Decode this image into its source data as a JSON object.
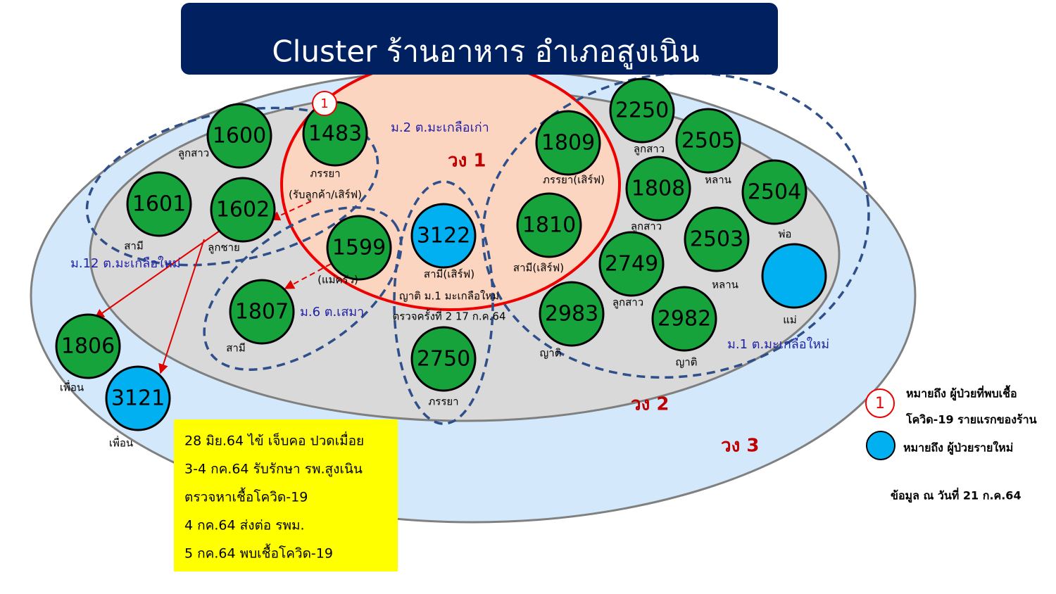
{
  "title": "Cluster ร้านอาหาร อำเภอสูงเนิน",
  "nodes": [
    {
      "id": "1600",
      "label": "ลูกสาว",
      "color": "#17a33b"
    },
    {
      "id": "1483",
      "label": "ภรรยา",
      "label2": "(รับลูกค้า/เสิร์ฟ)",
      "color": "#17a33b",
      "marker": "1"
    },
    {
      "id": "1601",
      "label": "สามี",
      "color": "#17a33b"
    },
    {
      "id": "1602",
      "label": "ลูกชาย",
      "color": "#17a33b"
    },
    {
      "id": "1599",
      "label": "(แม่ครัว)",
      "color": "#17a33b"
    },
    {
      "id": "3122",
      "label": "สามี(เสิร์ฟ)",
      "color": "#00b0f0"
    },
    {
      "id": "1809",
      "label": "ภรรยา(เสิร์ฟ)",
      "color": "#17a33b"
    },
    {
      "id": "1810",
      "label": "สามี(เสิร์ฟ)",
      "color": "#17a33b"
    },
    {
      "id": "2250",
      "label": "ลูกสาว",
      "color": "#17a33b"
    },
    {
      "id": "2505",
      "label": "หลาน",
      "color": "#17a33b"
    },
    {
      "id": "1808",
      "label": "ลูกสาว",
      "color": "#17a33b"
    },
    {
      "id": "2504",
      "label": "พ่อ",
      "color": "#17a33b"
    },
    {
      "id": "2503",
      "label": "หลาน",
      "color": "#17a33b"
    },
    {
      "id": "2749",
      "label": "ลูกสาว",
      "color": "#17a33b"
    },
    {
      "id": "2983",
      "label": "ญาติ",
      "color": "#17a33b"
    },
    {
      "id": "2982",
      "label": "ญาติ",
      "color": "#17a33b"
    },
    {
      "label": "แม่",
      "color": "#00b0f0"
    },
    {
      "id": "1807",
      "label": "สามี",
      "color": "#17a33b"
    },
    {
      "id": "2750",
      "label": "ภรรยา",
      "color": "#17a33b"
    },
    {
      "id": "1806",
      "label": "เพื่อน",
      "color": "#17a33b"
    },
    {
      "id": "3121",
      "label": "เพื่อน",
      "color": "#00b0f0"
    }
  ],
  "areas": [
    "ม.2 ต.มะเกลือเก่า",
    "ม.12 ต.มะเกลือใหม่",
    "ม.6 ต.เสมา",
    "ม.1 ต.มะเกลือใหม่",
    "ญาติ ม.1 มะเกลือใหม่",
    "ตรวจครั้งที่ 2 17 ก.ค.64"
  ],
  "rings": [
    "วง 1",
    "วง 2",
    "วง 3"
  ],
  "notes": [
    "28 มิย.64 ไข้ เจ็บคอ  ปวดเมื่อย",
    "3-4 กค.64 รับรักษา รพ.สูงเนิน",
    "ตรวจหาเชื้อโควิด-19",
    "4 กค.64 ส่งต่อ รพม.",
    "5 กค.64 พบเชื้อโควิด-19"
  ],
  "legend": {
    "marker": "1",
    "first_text_1": "หมายถึง  ผู้ป่วยที่พบเชื้อ",
    "first_text_2": "โควิด-19 รายแรกของร้าน",
    "new_text": "หมายถึง  ผู้ป่วยรายใหม่"
  },
  "footnote": "ข้อมูล ณ วันที่  21 ก.ค.64"
}
